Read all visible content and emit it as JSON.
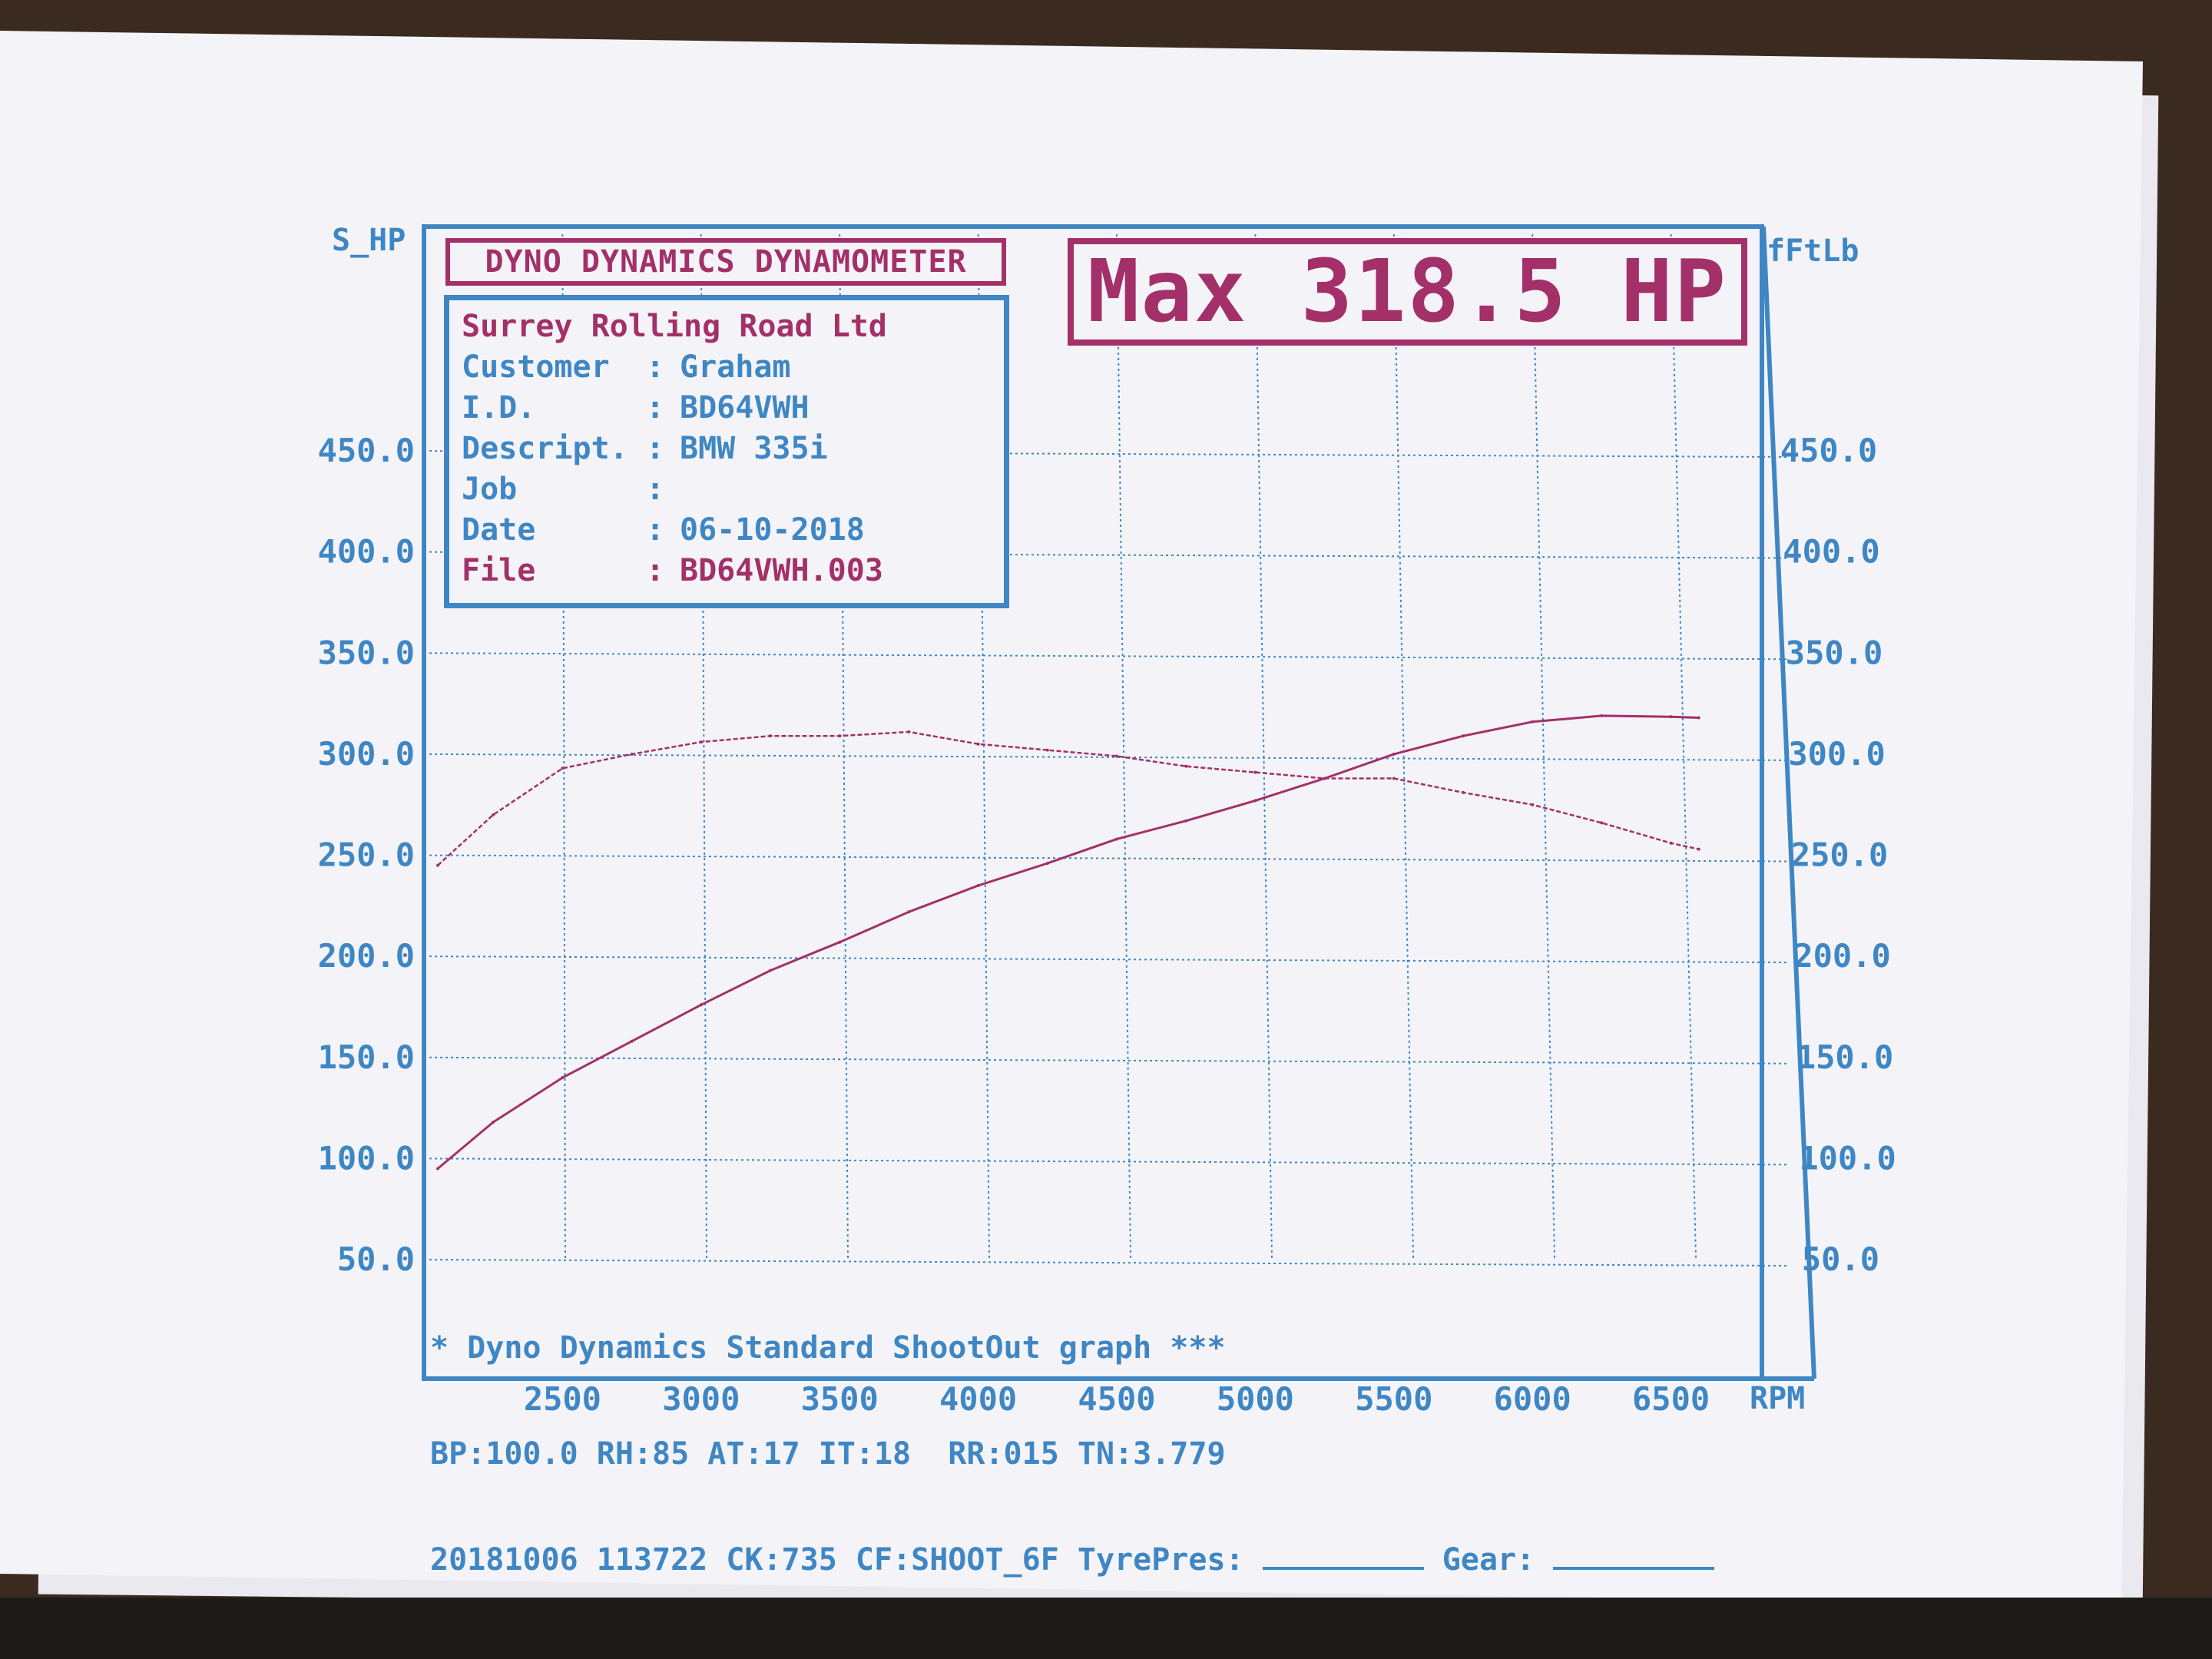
{
  "header": {
    "title": "DYNO DYNAMICS DYNAMOMETER",
    "company": "Surrey Rolling Road Ltd",
    "max_text": "Max 318.5 HP"
  },
  "info": [
    {
      "key": "Customer",
      "value": "Graham"
    },
    {
      "key": "I.D.",
      "value": "BD64VWH"
    },
    {
      "key": "Descript.",
      "value": "BMW 335i"
    },
    {
      "key": "Job",
      "value": ""
    },
    {
      "key": "Date",
      "value": "06-10-2018"
    },
    {
      "key": "File",
      "value": "BD64VWH.003"
    }
  ],
  "footer": {
    "line1": "* Dyno Dynamics Standard ShootOut graph ***",
    "line2": "BP:100.0 RH:85 AT:17 IT:18  RR:015 TN:3.779",
    "line3_a": "20181006 113722 CK:735 CF:SHOOT_6F TyrePres:",
    "line3_b": "Gear:"
  },
  "colors": {
    "blue": "#3f86c4",
    "red": "#a33068",
    "paper": "#f4f4f8"
  },
  "chart_data": {
    "type": "line",
    "ylabel_left": "S_HP",
    "ylabel_right": "fFtLb",
    "xlabel": "RPM",
    "x_ticks": [
      2500,
      3000,
      3500,
      4000,
      4500,
      5000,
      5500,
      6000,
      6500
    ],
    "y_ticks": [
      "450.0",
      "400.0",
      "350.0",
      "300.0",
      "250.0",
      "200.0",
      "150.0",
      "100.0",
      "50.0"
    ],
    "xlim": [
      2000,
      7000
    ],
    "ylim": [
      50,
      475
    ],
    "grid": true,
    "series": [
      {
        "name": "S_HP",
        "x": [
          2050,
          2250,
          2500,
          2750,
          3000,
          3250,
          3500,
          3750,
          4000,
          4250,
          4500,
          4750,
          5000,
          5250,
          5500,
          5750,
          6000,
          6250,
          6500,
          6600
        ],
        "y": [
          95,
          118,
          140,
          158,
          176,
          193,
          207,
          222,
          235,
          246,
          258,
          267,
          277,
          288,
          300,
          309,
          316,
          319,
          318.5,
          318
        ]
      },
      {
        "name": "fFtLb",
        "x": [
          2050,
          2250,
          2500,
          2750,
          3000,
          3250,
          3500,
          3750,
          4000,
          4250,
          4500,
          4750,
          5000,
          5250,
          5500,
          5750,
          6000,
          6250,
          6500,
          6600
        ],
        "y": [
          245,
          270,
          293,
          300,
          306,
          309,
          309,
          311,
          305,
          302,
          299,
          294,
          291,
          288,
          288,
          281,
          275,
          266,
          256,
          253
        ]
      }
    ]
  }
}
